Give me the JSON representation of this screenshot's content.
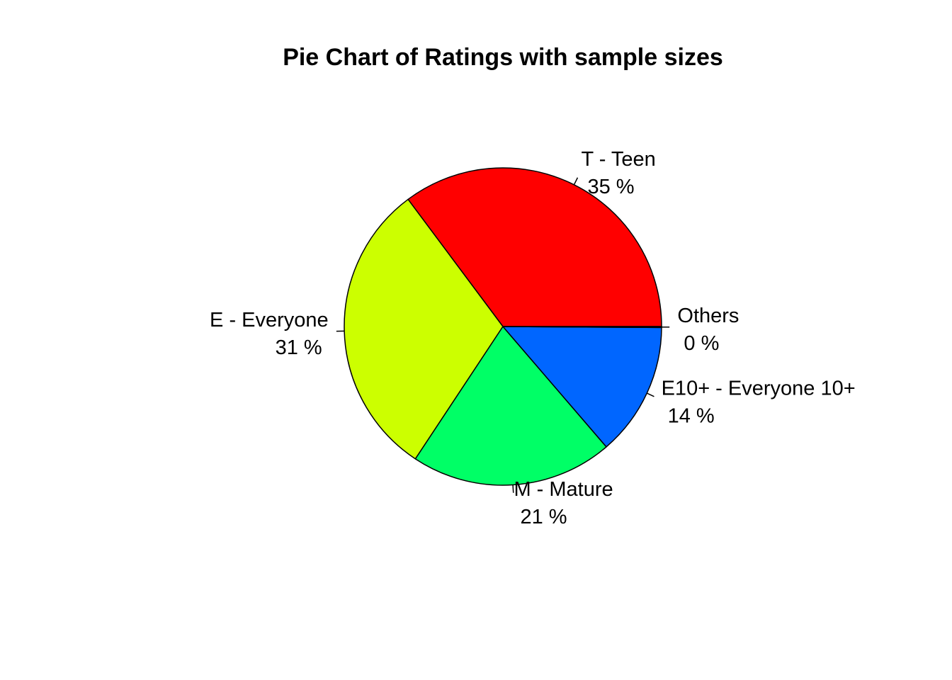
{
  "chart_data": {
    "type": "pie",
    "title": "Pie Chart of Ratings with sample sizes",
    "start_angle_deg": 0,
    "direction": "counterclockwise",
    "slices": [
      {
        "category": "T - Teen",
        "percent_label": "35 %",
        "value": 35.2,
        "color": "#FF0000"
      },
      {
        "category": "E - Everyone",
        "percent_label": "31 %",
        "value": 30.5,
        "color": "#CCFF00"
      },
      {
        "category": "M - Mature",
        "percent_label": "21 %",
        "value": 20.6,
        "color": "#00FF66"
      },
      {
        "category": "E10+ - Everyone 10+",
        "percent_label": "14 %",
        "value": 13.6,
        "color": "#0066FF"
      },
      {
        "category": "Others",
        "percent_label": "0 %",
        "value": 0.1,
        "color": "#CC00FF"
      }
    ]
  }
}
